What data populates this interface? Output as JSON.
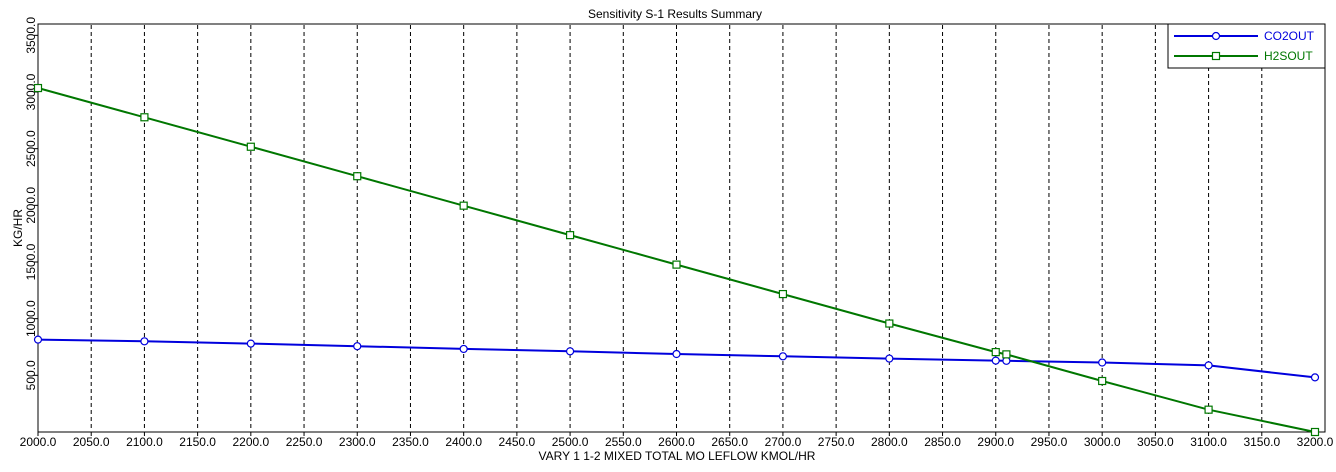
{
  "chart_data": {
    "type": "line",
    "title": "Sensitivity S-1 Results Summary",
    "xlabel": "VARY   1 1-2 MIXED TOTAL MO LEFLOW  KMOL/HR",
    "ylabel": "KG/HR",
    "xlim": [
      2000,
      3200
    ],
    "ylim": [
      0,
      3600
    ],
    "x_ticks": [
      2000,
      2050,
      2100,
      2150,
      2200,
      2250,
      2300,
      2350,
      2400,
      2450,
      2500,
      2550,
      2600,
      2650,
      2700,
      2750,
      2800,
      2850,
      2900,
      2950,
      3000,
      3050,
      3100,
      3150,
      3200
    ],
    "x_tick_labels": [
      "2000.0",
      "2050.0",
      "2100.0",
      "2150.0",
      "2200.0",
      "2250.0",
      "2300.0",
      "2350.0",
      "2400.0",
      "2450.0",
      "2500.0",
      "2550.0",
      "2600.0",
      "2650.0",
      "2700.0",
      "2750.0",
      "2800.0",
      "2850.0",
      "2900.0",
      "2950.0",
      "3000.0",
      "3050.0",
      "3100.0",
      "3150.0",
      "3200.0"
    ],
    "y_ticks": [
      500,
      1000,
      1500,
      2000,
      2500,
      3000,
      3500
    ],
    "y_tick_labels": [
      "500.0",
      "1000.0",
      "1500.0",
      "2000.0",
      "2500.0",
      "3000.0",
      "3500.0"
    ],
    "grid": "vertical dashed",
    "legend_position": "top-right",
    "series": [
      {
        "name": "CO2OUT",
        "color": "#0000dd",
        "marker": "circle",
        "x": [
          2000,
          2100,
          2200,
          2300,
          2400,
          2500,
          2600,
          2700,
          2800,
          2900,
          2910,
          3000,
          3100,
          3200
        ],
        "y": [
          815,
          800,
          780,
          757,
          733,
          712,
          688,
          668,
          648,
          630,
          628,
          613,
          588,
          482
        ]
      },
      {
        "name": "H2SOUT",
        "color": "#007700",
        "marker": "square",
        "x": [
          2000,
          2100,
          2200,
          2300,
          2400,
          2500,
          2600,
          2700,
          2800,
          2900,
          2910,
          3000,
          3100,
          3200
        ],
        "y": [
          3035,
          2777,
          2517,
          2257,
          1997,
          1737,
          1477,
          1217,
          957,
          705,
          685,
          450,
          197,
          0
        ]
      }
    ]
  }
}
